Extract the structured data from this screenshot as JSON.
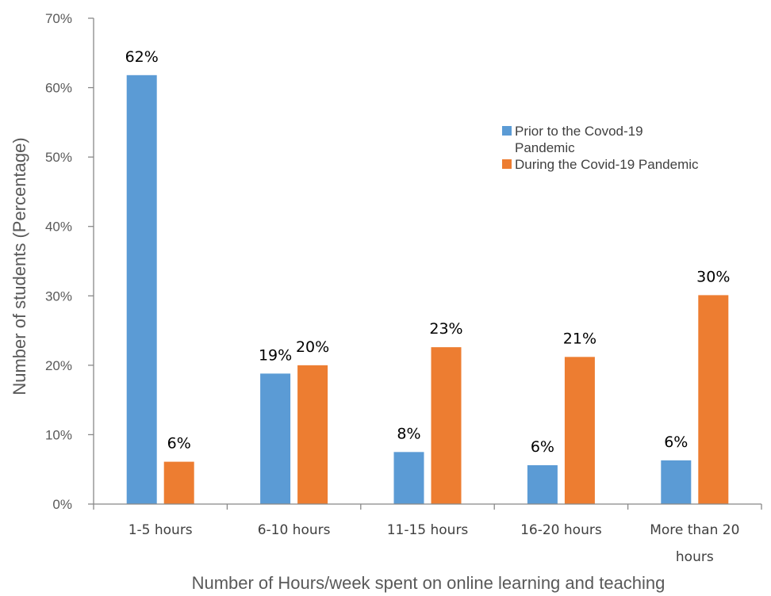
{
  "chart_data": {
    "type": "bar",
    "categories": [
      "1-5 hours",
      "6-10 hours",
      "11-15 hours",
      "16-20 hours",
      "More than 20 hours"
    ],
    "category_lines": [
      [
        "1-5 hours"
      ],
      [
        "6-10 hours"
      ],
      [
        "11-15 hours"
      ],
      [
        "16-20 hours"
      ],
      [
        "More than 20",
        "hours"
      ]
    ],
    "series": [
      {
        "name": "Prior to the Covod-19 Pandemic",
        "name_lines": [
          "Prior to the Covod-19",
          "Pandemic"
        ],
        "color": "#5b9bd5",
        "values": [
          61.8,
          18.8,
          7.5,
          5.6,
          6.3
        ],
        "labels": [
          "62%",
          "19%",
          "8%",
          "6%",
          "6%"
        ]
      },
      {
        "name": "During the Covid-19 Pandemic",
        "name_lines": [
          "During the Covid-19 Pandemic"
        ],
        "color": "#ed7d31",
        "values": [
          6.1,
          20.0,
          22.6,
          21.2,
          30.1
        ],
        "labels": [
          "6%",
          "20%",
          "23%",
          "21%",
          "30%"
        ]
      }
    ],
    "yticks": [
      "0%",
      "10%",
      "20%",
      "30%",
      "40%",
      "50%",
      "60%",
      "70%"
    ],
    "ylim": [
      0,
      70
    ],
    "xlabel": "Number of Hours/week spent on online learning and teaching",
    "ylabel": "Number of students (Percentage)",
    "legend_position": "top-right",
    "grid": false
  }
}
